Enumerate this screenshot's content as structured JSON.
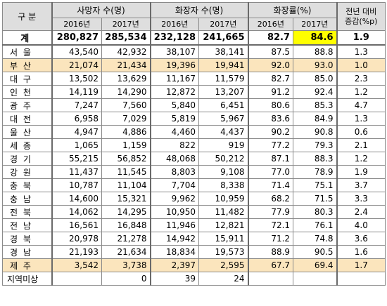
{
  "header": {
    "region": "구 분",
    "deaths": "사망자 수(명)",
    "cremations": "화장자 수(명)",
    "rate": "화장률(%)",
    "change_line1": "전년 대비",
    "change_line2": "증감(%p)",
    "y2016": "2016년",
    "y2017": "2017년"
  },
  "total": {
    "region": "계",
    "d2016": "280,827",
    "d2017": "285,534",
    "c2016": "232,128",
    "c2017": "241,665",
    "r2016": "82.7",
    "r2017": "84.6",
    "diff": "1.9"
  },
  "rows": [
    {
      "region": "서 울",
      "d2016": "43,540",
      "d2017": "42,932",
      "c2016": "38,107",
      "c2017": "38,141",
      "r2016": "87.5",
      "r2017": "88.8",
      "diff": "1.3"
    },
    {
      "region": "부 산",
      "d2016": "21,074",
      "d2017": "21,434",
      "c2016": "19,396",
      "c2017": "19,941",
      "r2016": "92.0",
      "r2017": "93.0",
      "diff": "1.0"
    },
    {
      "region": "대 구",
      "d2016": "13,502",
      "d2017": "13,629",
      "c2016": "11,167",
      "c2017": "11,579",
      "r2016": "82.7",
      "r2017": "85.0",
      "diff": "2.3"
    },
    {
      "region": "인 천",
      "d2016": "14,119",
      "d2017": "14,290",
      "c2016": "12,872",
      "c2017": "13,207",
      "r2016": "91.2",
      "r2017": "92.4",
      "diff": "1.2"
    },
    {
      "region": "광 주",
      "d2016": "7,247",
      "d2017": "7,560",
      "c2016": "5,840",
      "c2017": "6,451",
      "r2016": "80.6",
      "r2017": "85.3",
      "diff": "4.7"
    },
    {
      "region": "대 전",
      "d2016": "6,958",
      "d2017": "7,029",
      "c2016": "5,819",
      "c2017": "5,967",
      "r2016": "83.6",
      "r2017": "84.9",
      "diff": "1.3"
    },
    {
      "region": "울 산",
      "d2016": "4,947",
      "d2017": "4,886",
      "c2016": "4,460",
      "c2017": "4,437",
      "r2016": "90.2",
      "r2017": "90.8",
      "diff": "0.6"
    },
    {
      "region": "세 종",
      "d2016": "1,065",
      "d2017": "1,159",
      "c2016": "822",
      "c2017": "919",
      "r2016": "77.2",
      "r2017": "79.3",
      "diff": "2.1"
    },
    {
      "region": "경 기",
      "d2016": "55,215",
      "d2017": "56,852",
      "c2016": "48,068",
      "c2017": "50,212",
      "r2016": "87.1",
      "r2017": "88.3",
      "diff": "1.2"
    },
    {
      "region": "강 원",
      "d2016": "11,437",
      "d2017": "11,545",
      "c2016": "8,803",
      "c2017": "9,108",
      "r2016": "77.0",
      "r2017": "78.9",
      "diff": "1.9"
    },
    {
      "region": "충 북",
      "d2016": "10,787",
      "d2017": "11,104",
      "c2016": "7,704",
      "c2017": "8,338",
      "r2016": "71.4",
      "r2017": "75.1",
      "diff": "3.7"
    },
    {
      "region": "충 남",
      "d2016": "14,600",
      "d2017": "15,321",
      "c2016": "9,962",
      "c2017": "10,959",
      "r2016": "68.2",
      "r2017": "71.5",
      "diff": "3.3"
    },
    {
      "region": "전 북",
      "d2016": "14,062",
      "d2017": "14,295",
      "c2016": "10,950",
      "c2017": "11,482",
      "r2016": "77.9",
      "r2017": "80.3",
      "diff": "2.4"
    },
    {
      "region": "전 남",
      "d2016": "16,561",
      "d2017": "16,848",
      "c2016": "11,946",
      "c2017": "12,821",
      "r2016": "72.1",
      "r2017": "76.1",
      "diff": "4.0"
    },
    {
      "region": "경 북",
      "d2016": "20,978",
      "d2017": "21,278",
      "c2016": "14,942",
      "c2017": "15,911",
      "r2016": "71.2",
      "r2017": "74.8",
      "diff": "3.6"
    },
    {
      "region": "경 남",
      "d2016": "21,193",
      "d2017": "21,634",
      "c2016": "18,834",
      "c2017": "19,573",
      "r2016": "88.9",
      "r2017": "90.5",
      "diff": "1.6"
    },
    {
      "region": "제 주",
      "d2016": "3,542",
      "d2017": "3,738",
      "c2016": "2,397",
      "c2017": "2,595",
      "r2016": "67.7",
      "r2017": "69.4",
      "diff": "1.7"
    },
    {
      "region": "지역미상",
      "d2016": "",
      "d2017": "0",
      "c2016": "39",
      "c2017": "24",
      "r2016": "",
      "r2017": "",
      "diff": ""
    }
  ],
  "highlight": {
    "row_fill": "#fbe5bd",
    "cell_fill": "#ffff00",
    "header_fill": "#dedede"
  }
}
